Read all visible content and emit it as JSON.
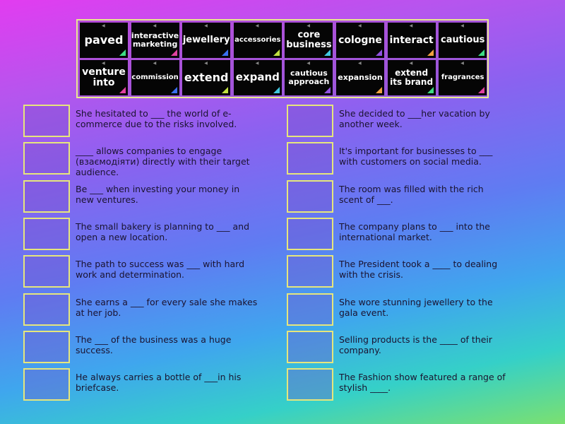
{
  "tiles": [
    {
      "label": "paved",
      "color": "#3ddc84",
      "size": 16
    },
    {
      "label": "interactive marketing",
      "color": "#e040a0",
      "size": 11
    },
    {
      "label": "jewellery",
      "color": "#3a6ff0",
      "size": 13
    },
    {
      "label": "accessories",
      "color": "#c0e040",
      "size": 10
    },
    {
      "label": "core business",
      "color": "#40c8e0",
      "size": 13
    },
    {
      "label": "cologne",
      "color": "#9050e0",
      "size": 14
    },
    {
      "label": "interact",
      "color": "#f0a040",
      "size": 14
    },
    {
      "label": "cautious",
      "color": "#3ddc84",
      "size": 13
    },
    {
      "label": "venture into",
      "color": "#e040a0",
      "size": 14
    },
    {
      "label": "commission",
      "color": "#3a6ff0",
      "size": 10
    },
    {
      "label": "extend",
      "color": "#c0e040",
      "size": 16
    },
    {
      "label": "expand",
      "color": "#40c8e0",
      "size": 15
    },
    {
      "label": "cautious approach",
      "color": "#9050e0",
      "size": 11
    },
    {
      "label": "expansion",
      "color": "#f0a040",
      "size": 11
    },
    {
      "label": "extend its brand",
      "color": "#3ddc84",
      "size": 12
    },
    {
      "label": "fragrances",
      "color": "#e040a0",
      "size": 10
    }
  ],
  "left": [
    "She hesitated to ___ the world of e-commerce due to the risks involved.",
    "____ allows companies to engage (взаємодіяти) directly with their target audience.",
    "Be ___ when investing your money in new ventures.",
    "The small bakery is planning to ___ and open a new location.",
    "The path to success was ___ with hard work and determination.",
    "She earns a ___ for every sale she makes at her job.",
    "The ___ of the business was a huge success.",
    "He always carries a bottle of ___in his briefcase."
  ],
  "right": [
    "She decided to ___her vacation by another week.",
    "It's important for businesses to ___ with customers on social media.",
    "The room was filled with the rich scent of ___.",
    "The company plans to ___ into the international market.",
    "The President took a ____ to dealing with the crisis.",
    "She wore stunning jewellery to the gala event.",
    "Selling products is the ____ of their company.",
    "The Fashion show featured a range of stylish ____."
  ]
}
